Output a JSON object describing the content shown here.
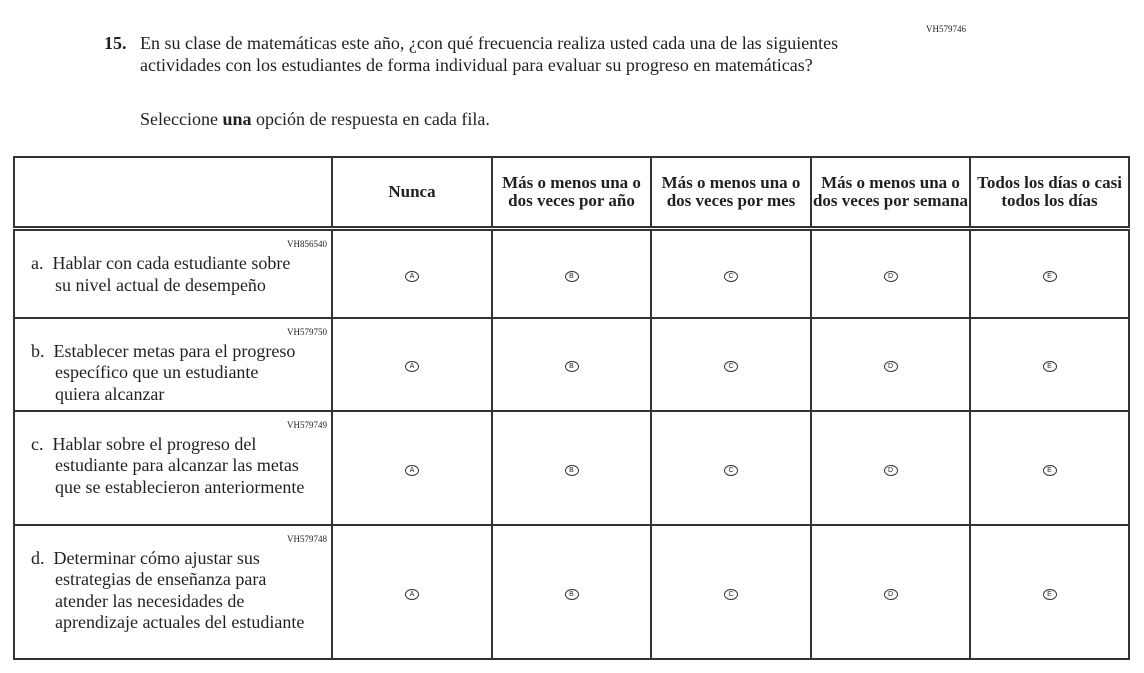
{
  "question": {
    "id": "VH579746",
    "number": "15.",
    "text": "En su clase de matemáticas este año, ¿con qué frecuencia realiza usted cada una de las siguientes actividades con los estudiantes de forma individual para evaluar su progreso en matemáticas?",
    "instruction_pre": "Seleccione ",
    "instruction_bold": "una",
    "instruction_post": " opción de respuesta en cada fila."
  },
  "columns": [
    "Nunca",
    "Más o menos una o dos veces por año",
    "Más o menos una o dos veces por mes",
    "Más o menos una o dos veces por semana",
    "Todos los días o casi todos los días"
  ],
  "options": [
    "A",
    "B",
    "C",
    "D",
    "E"
  ],
  "rows": [
    {
      "id": "VH856540",
      "label": "a.",
      "text": "Hablar con cada estudiante sobre su nivel actual de desempeño"
    },
    {
      "id": "VH579750",
      "label": "b.",
      "text": "Establecer metas para el progreso específico que un estudiante quiera alcanzar"
    },
    {
      "id": "VH579749",
      "label": "c.",
      "text": "Hablar sobre el progreso del estudiante para alcanzar las metas que se establecieron anteriormente"
    },
    {
      "id": "VH579748",
      "label": "d.",
      "text": "Determinar cómo ajustar sus estrategias de enseñanza para atender las necesidades de aprendizaje actuales del estudiante"
    }
  ]
}
